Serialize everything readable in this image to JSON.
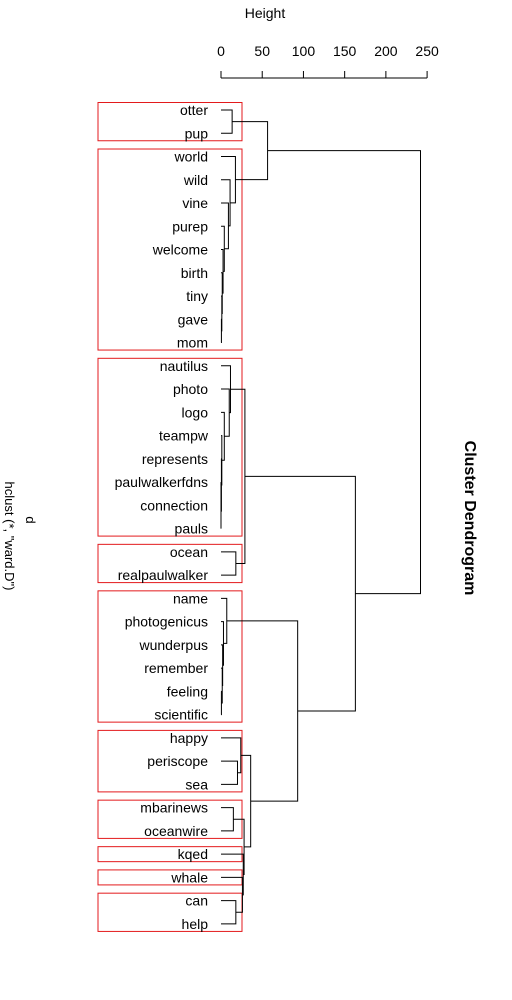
{
  "chart_data": {
    "type": "dendrogram",
    "title": "Cluster Dendrogram",
    "axis_label": "Height",
    "subtitle_line1": "d",
    "subtitle_line2": "hclust (*, \"ward.D\")",
    "ticks": [
      0,
      50,
      100,
      150,
      200,
      250
    ],
    "height_range": [
      0,
      250
    ],
    "leaves": [
      "otter",
      "pup",
      "world",
      "wild",
      "vine",
      "purep",
      "welcome",
      "birth",
      "tiny",
      "gave",
      "mom",
      "nautilus",
      "photo",
      "logo",
      "teampw",
      "represents",
      "paulwalkerfdns",
      "connection",
      "pauls",
      "ocean",
      "realpaulwalker",
      "name",
      "photogenicus",
      "wunderpus",
      "remember",
      "feeling",
      "scientific",
      "happy",
      "periscope",
      "sea",
      "mbarinews",
      "oceanwire",
      "kqed",
      "whale",
      "can",
      "help"
    ],
    "merges": [
      {
        "a": "L:otter",
        "b": "L:pup",
        "h": 13.5
      },
      {
        "a": "L:paulwalkerfdns",
        "b": "L:connection",
        "h": 0
      },
      {
        "a": "N:1",
        "b": "L:pauls",
        "h": 0
      },
      {
        "a": "L:represents",
        "b": "N:2",
        "h": 0.5
      },
      {
        "a": "L:gave",
        "b": "L:mom",
        "h": 0.5
      },
      {
        "a": "L:tiny",
        "b": "N:4",
        "h": 1
      },
      {
        "a": "L:birth",
        "b": "N:5",
        "h": 1.5
      },
      {
        "a": "L:welcome",
        "b": "N:6",
        "h": 2.5
      },
      {
        "a": "L:purep",
        "b": "N:7",
        "h": 4
      },
      {
        "a": "L:vine",
        "b": "N:8",
        "h": 9
      },
      {
        "a": "L:wild",
        "b": "N:9",
        "h": 11
      },
      {
        "a": "L:world",
        "b": "N:10",
        "h": 17.5
      },
      {
        "a": "N:0",
        "b": "N:11",
        "h": 56.5
      },
      {
        "a": "L:teampw",
        "b": "N:3",
        "h": 1
      },
      {
        "a": "L:logo",
        "b": "N:13",
        "h": 4
      },
      {
        "a": "L:photo",
        "b": "N:14",
        "h": 10
      },
      {
        "a": "L:nautilus",
        "b": "N:15",
        "h": 11.5
      },
      {
        "a": "L:ocean",
        "b": "L:realpaulwalker",
        "h": 18
      },
      {
        "a": "N:16",
        "b": "N:17",
        "h": 29
      },
      {
        "a": "L:feeling",
        "b": "L:scientific",
        "h": 0.5
      },
      {
        "a": "L:remember",
        "b": "N:19",
        "h": 1.5
      },
      {
        "a": "L:wunderpus",
        "b": "N:20",
        "h": 2
      },
      {
        "a": "L:photogenicus",
        "b": "N:21",
        "h": 3
      },
      {
        "a": "L:name",
        "b": "N:22",
        "h": 7
      },
      {
        "a": "L:periscope",
        "b": "L:sea",
        "h": 20
      },
      {
        "a": "L:happy",
        "b": "N:24",
        "h": 24
      },
      {
        "a": "L:mbarinews",
        "b": "L:oceanwire",
        "h": 15
      },
      {
        "a": "L:can",
        "b": "L:help",
        "h": 18
      },
      {
        "a": "L:whale",
        "b": "N:27",
        "h": 26
      },
      {
        "a": "L:kqed",
        "b": "N:28",
        "h": 27
      },
      {
        "a": "N:26",
        "b": "N:29",
        "h": 28
      },
      {
        "a": "N:25",
        "b": "N:30",
        "h": 36
      },
      {
        "a": "N:23",
        "b": "N:31",
        "h": 93
      },
      {
        "a": "N:18",
        "b": "N:32",
        "h": 163
      },
      {
        "a": "N:12",
        "b": "N:33",
        "h": 242
      }
    ],
    "cluster_boxes": [
      [
        "otter",
        "pup"
      ],
      [
        "world",
        "mom"
      ],
      [
        "nautilus",
        "pauls"
      ],
      [
        "ocean",
        "realpaulwalker"
      ],
      [
        "name",
        "scientific"
      ],
      [
        "happy",
        "sea"
      ],
      [
        "mbarinews",
        "oceanwire"
      ],
      [
        "kqed",
        "kqed"
      ],
      [
        "whale",
        "whale"
      ],
      [
        "can",
        "help"
      ]
    ],
    "box_color": "#e31a1c",
    "line_color": "#000000"
  }
}
